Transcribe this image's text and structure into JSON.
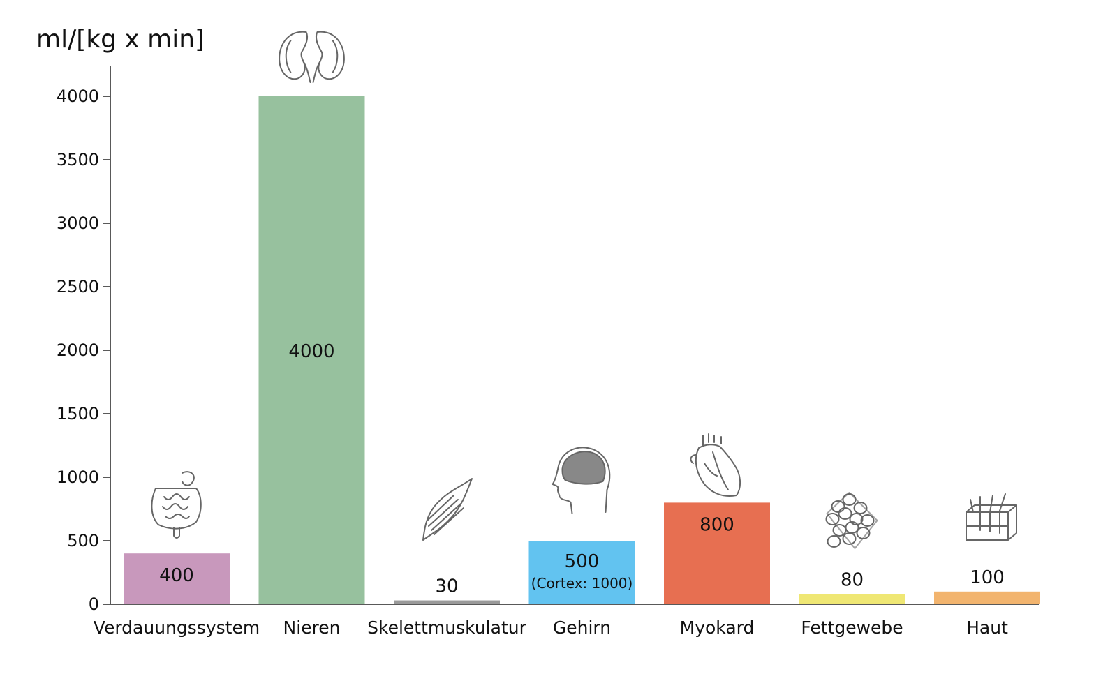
{
  "chart_data": {
    "type": "bar",
    "ylabel": "ml/[kg x min]",
    "ylim": [
      0,
      4200
    ],
    "yticks": [
      0,
      500,
      1000,
      1500,
      2000,
      2500,
      3000,
      3500,
      4000
    ],
    "grid": false,
    "categories": [
      "Verdauungssystem",
      "Nieren",
      "Skelettmuskulatur",
      "Gehirn",
      "Myokard",
      "Fettgewebe",
      "Haut"
    ],
    "values": [
      400,
      4000,
      30,
      500,
      800,
      80,
      100
    ],
    "value_labels": [
      "400",
      "4000",
      "30",
      "500",
      "800",
      "80",
      "100"
    ],
    "sub_labels": [
      "",
      "",
      "",
      "(Cortex: 1000)",
      "",
      "",
      ""
    ],
    "colors": [
      "#c898bc",
      "#97c19e",
      "#9a9a9a",
      "#62c3f0",
      "#e76f51",
      "#efe774",
      "#f2b46e"
    ],
    "icons": [
      "intestine-icon",
      "kidneys-icon",
      "muscle-icon",
      "brain-head-icon",
      "heart-icon",
      "fat-tissue-icon",
      "skin-icon"
    ]
  }
}
